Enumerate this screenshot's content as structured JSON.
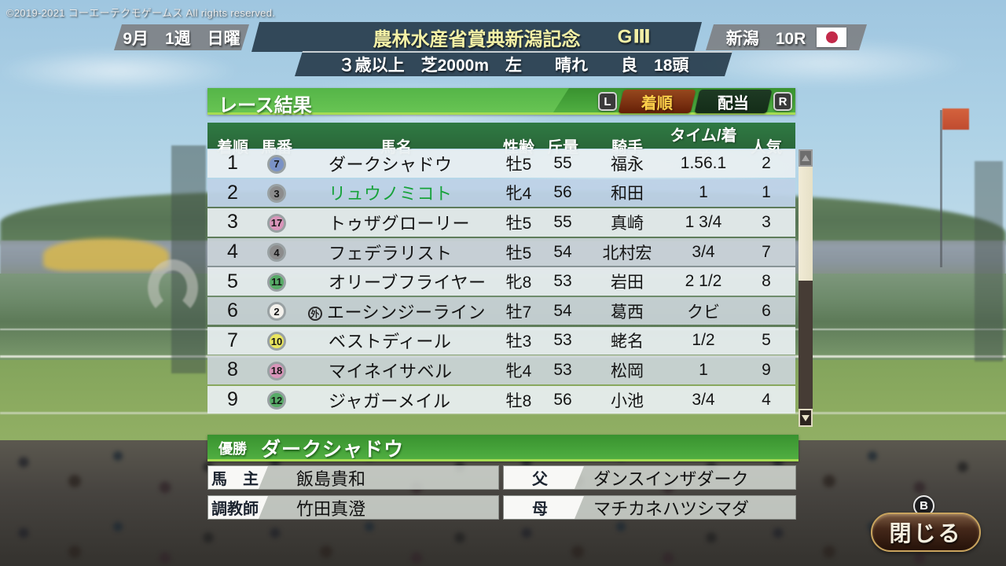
{
  "copyright": "©2019-2021 コーエーテクモゲームス All rights reserved.",
  "header": {
    "date": "9月　1週　日曜",
    "race_name": "農林水産省賞典新潟記念",
    "grade": "GⅢ",
    "venue": "新潟　10R",
    "flag": "japan-flag",
    "conditions": "３歳以上　芝2000m　左　　晴れ　　良　18頭"
  },
  "panel": {
    "title": "レース結果",
    "l_button": "L",
    "r_button": "R",
    "tabs": [
      {
        "label": "着順",
        "active": true
      },
      {
        "label": "配当",
        "active": false
      }
    ]
  },
  "table": {
    "headers": [
      "着順",
      "馬番",
      "馬名",
      "性齢",
      "斤量",
      "騎手",
      "タイム/着差",
      "人気"
    ],
    "rows": [
      {
        "pos": "1",
        "num": "7",
        "frame": "blue",
        "mark": "",
        "name": "ダークシャドウ",
        "sex_age": "牡5",
        "weight": "55",
        "jockey": "福永",
        "time": "1.56.1",
        "popularity": "2",
        "highlight": false
      },
      {
        "pos": "2",
        "num": "3",
        "frame": "black",
        "mark": "",
        "name": "リュウノミコト",
        "sex_age": "牝4",
        "weight": "56",
        "jockey": "和田",
        "time": "1",
        "popularity": "1",
        "highlight": true
      },
      {
        "pos": "3",
        "num": "17",
        "frame": "pink",
        "mark": "",
        "name": "トゥザグローリー",
        "sex_age": "牡5",
        "weight": "55",
        "jockey": "真崎",
        "time": "1 3/4",
        "popularity": "3",
        "highlight": false
      },
      {
        "pos": "4",
        "num": "4",
        "frame": "black",
        "mark": "",
        "name": "フェデラリスト",
        "sex_age": "牡5",
        "weight": "54",
        "jockey": "北村宏",
        "time": "3/4",
        "popularity": "7",
        "highlight": false
      },
      {
        "pos": "5",
        "num": "11",
        "frame": "green",
        "mark": "",
        "name": "オリーブフライヤー",
        "sex_age": "牝8",
        "weight": "53",
        "jockey": "岩田",
        "time": "2 1/2",
        "popularity": "8",
        "highlight": false
      },
      {
        "pos": "6",
        "num": "2",
        "frame": "white",
        "mark": "外",
        "name": "エーシンジーライン",
        "sex_age": "牡7",
        "weight": "54",
        "jockey": "葛西",
        "time": "クビ",
        "popularity": "6",
        "highlight": false
      },
      {
        "pos": "7",
        "num": "10",
        "frame": "yellow",
        "mark": "",
        "name": "ベストディール",
        "sex_age": "牡3",
        "weight": "53",
        "jockey": "蛯名",
        "time": "1/2",
        "popularity": "5",
        "highlight": false
      },
      {
        "pos": "8",
        "num": "18",
        "frame": "pink",
        "mark": "",
        "name": "マイネイサベル",
        "sex_age": "牝4",
        "weight": "53",
        "jockey": "松岡",
        "time": "1",
        "popularity": "9",
        "highlight": false
      },
      {
        "pos": "9",
        "num": "12",
        "frame": "green",
        "mark": "",
        "name": "ジャガーメイル",
        "sex_age": "牡8",
        "weight": "56",
        "jockey": "小池",
        "time": "3/4",
        "popularity": "4",
        "highlight": false
      }
    ]
  },
  "frame_colors": {
    "white": "#f3f1ec",
    "black": "#8c8c8c",
    "blue": "#7a92c6",
    "yellow": "#e9e55f",
    "green": "#57ab67",
    "pink": "#d995ba"
  },
  "winner": {
    "label": "優勝",
    "name": "ダークシャドウ",
    "details": [
      {
        "label": "馬　主",
        "value": "飯島貴和"
      },
      {
        "label": "父",
        "value": "ダンスインザダーク"
      },
      {
        "label": "調教師",
        "value": "竹田真澄"
      },
      {
        "label": "母",
        "value": "マチカネハツシマダ"
      }
    ]
  },
  "close": {
    "label": "閉じる",
    "gamepad": "B"
  },
  "colors": {
    "accent_green": "#46a33a",
    "header_teal": "#2b4050",
    "bar_gray": "#7e8287",
    "tab_active_bg": "#7c3212",
    "tab_active_text": "#ffd04a",
    "highlight_name_green": "#17a23a",
    "race_name_yellow": "#f3f0a6",
    "close_border_gold": "#c9a45e",
    "scroll_thumb": "#ece6d0",
    "flag_red": "#c32a4a"
  }
}
